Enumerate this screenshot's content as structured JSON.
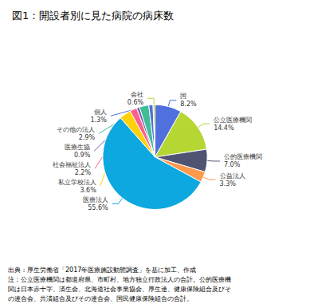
{
  "chart_data": {
    "type": "pie",
    "title": "図1：開設者別に見た病院の病床数",
    "categories": [
      "国",
      "公立医療機関",
      "公的医療機関",
      "公益法人",
      "医療法人",
      "私立学校法人",
      "社会福祉法人",
      "医療生協",
      "その他の法人",
      "個人",
      "会社"
    ],
    "values": [
      8.2,
      14.4,
      7.0,
      3.3,
      55.6,
      3.6,
      2.2,
      0.9,
      2.9,
      1.3,
      0.6
    ],
    "value_labels": [
      "8.2%",
      "14.4%",
      "7.0%",
      "3.3%",
      "55.6%",
      "3.6%",
      "2.2%",
      "0.9%",
      "2.9%",
      "1.3%",
      "0.6%"
    ],
    "data_labels": true,
    "footnote": [
      "出典：厚生労働省「2017年医療施設動態調査」を基に加工、作成",
      "注：公立医療機関は都道府県、市町村、地方独立行政法人の合計。公的医療機",
      "関は日本赤十字、済生会、北海道社会事業協会、厚生連、健康保険組合及びそ",
      "の連合会、共済組合及びその連合会、国民健康保険組合の合計。"
    ]
  }
}
